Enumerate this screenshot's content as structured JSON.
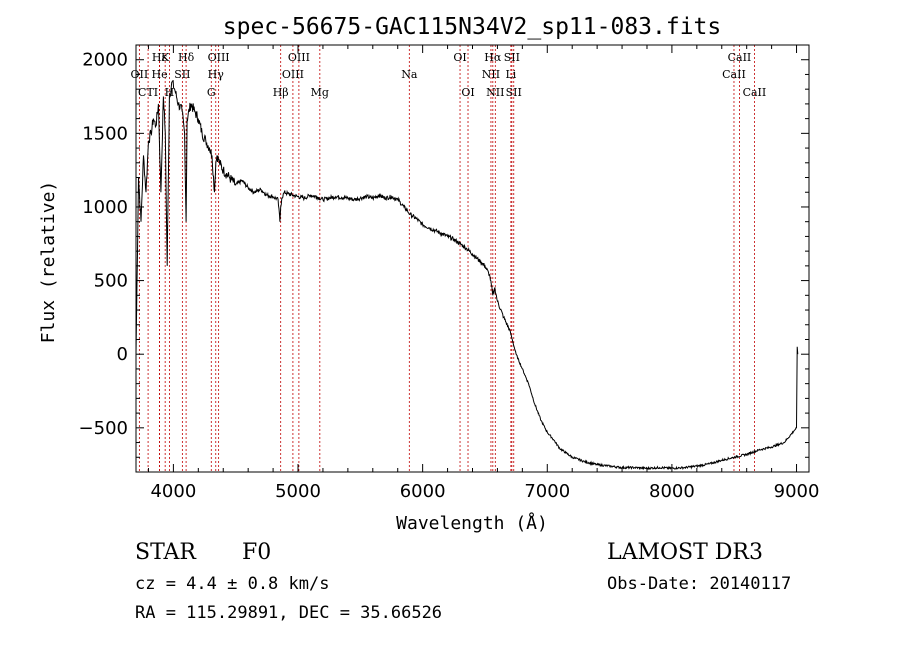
{
  "chart_data": {
    "type": "line",
    "title": "spec-56675-GAC115N34V2_sp11-083.fits",
    "xlabel": "Wavelength (Å)",
    "ylabel": "Flux (relative)",
    "xlim": [
      3700,
      9100
    ],
    "ylim": [
      -800,
      2100
    ],
    "x_ticks": [
      4000,
      5000,
      6000,
      7000,
      8000,
      9000
    ],
    "y_ticks": [
      -500,
      0,
      500,
      1000,
      1500,
      2000
    ],
    "x_tick_labels": [
      "4000",
      "5000",
      "6000",
      "7000",
      "8000",
      "9000"
    ],
    "y_tick_labels": [
      "−500",
      "0",
      "500",
      "1000",
      "1500",
      "2000"
    ],
    "series": [
      {
        "name": "flux",
        "x": [
          3700,
          3720,
          3740,
          3760,
          3780,
          3800,
          3820,
          3840,
          3860,
          3880,
          3900,
          3920,
          3935,
          3950,
          3968,
          3990,
          4010,
          4040,
          4070,
          4090,
          4102,
          4110,
          4140,
          4170,
          4200,
          4230,
          4260,
          4290,
          4310,
          4330,
          4340,
          4350,
          4370,
          4400,
          4450,
          4500,
          4550,
          4600,
          4650,
          4700,
          4750,
          4800,
          4840,
          4855,
          4861,
          4870,
          4890,
          4920,
          4960,
          5000,
          5050,
          5100,
          5150,
          5200,
          5250,
          5300,
          5350,
          5400,
          5450,
          5500,
          5550,
          5600,
          5650,
          5700,
          5750,
          5800,
          5850,
          5880,
          5900,
          5950,
          6000,
          6050,
          6100,
          6150,
          6200,
          6250,
          6300,
          6350,
          6400,
          6450,
          6500,
          6540,
          6563,
          6580,
          6600,
          6650,
          6700,
          6750,
          6800,
          6850,
          6900,
          6950,
          7000,
          7050,
          7100,
          7150,
          7200,
          7300,
          7400,
          7500,
          7600,
          7700,
          7800,
          7900,
          8000,
          8100,
          8200,
          8300,
          8400,
          8500,
          8600,
          8700,
          8800,
          8900,
          8980,
          9000,
          9005,
          9010
        ],
        "y": [
          0,
          1200,
          900,
          1350,
          1100,
          1450,
          1500,
          1600,
          1550,
          1700,
          1100,
          1750,
          1500,
          600,
          1750,
          1850,
          1800,
          1700,
          1650,
          1500,
          900,
          1600,
          1700,
          1650,
          1600,
          1500,
          1450,
          1400,
          1350,
          1100,
          1300,
          1350,
          1300,
          1250,
          1200,
          1150,
          1180,
          1130,
          1100,
          1120,
          1080,
          1070,
          1050,
          900,
          1000,
          1060,
          1100,
          1090,
          1080,
          1070,
          1060,
          1080,
          1070,
          1050,
          1060,
          1070,
          1065,
          1060,
          1050,
          1060,
          1070,
          1060,
          1080,
          1060,
          1070,
          1050,
          1000,
          970,
          950,
          920,
          880,
          860,
          840,
          820,
          800,
          780,
          750,
          720,
          680,
          640,
          600,
          530,
          400,
          450,
          360,
          250,
          160,
          0,
          -100,
          -200,
          -340,
          -450,
          -530,
          -580,
          -640,
          -670,
          -700,
          -730,
          -750,
          -760,
          -770,
          -770,
          -775,
          -770,
          -775,
          -770,
          -760,
          -745,
          -720,
          -700,
          -680,
          -650,
          -630,
          -600,
          -520,
          -500,
          50,
          0
        ]
      }
    ],
    "lines": [
      {
        "label": "Hε",
        "x": 3889,
        "row": 1
      },
      {
        "label": "OII",
        "x": 3727,
        "row": 2
      },
      {
        "label": "CTI",
        "x": 3797,
        "row": 3
      },
      {
        "label": "K",
        "x": 3934,
        "row": 1
      },
      {
        "label": "He",
        "x": 3889,
        "row": 2
      },
      {
        "label": "H",
        "x": 3968,
        "row": 3
      },
      {
        "label": "Hδ",
        "x": 4102,
        "row": 1
      },
      {
        "label": "SII",
        "x": 4072,
        "row": 2
      },
      {
        "label": "OIII",
        "x": 4363,
        "row": 1
      },
      {
        "label": "Hγ",
        "x": 4340,
        "row": 2
      },
      {
        "label": "G",
        "x": 4304,
        "row": 3
      },
      {
        "label": "Hβ",
        "x": 4861,
        "row": 3
      },
      {
        "label": "OIII",
        "x": 5007,
        "row": 1
      },
      {
        "label": "OIII",
        "x": 4959,
        "row": 2
      },
      {
        "label": "Mg",
        "x": 5175,
        "row": 3
      },
      {
        "label": "Na",
        "x": 5893,
        "row": 2
      },
      {
        "label": "OI",
        "x": 6300,
        "row": 1
      },
      {
        "label": "OI",
        "x": 6364,
        "row": 3
      },
      {
        "label": "Hα",
        "x": 6563,
        "row": 1
      },
      {
        "label": "SII",
        "x": 6716,
        "row": 1
      },
      {
        "label": "NII",
        "x": 6548,
        "row": 2
      },
      {
        "label": "Li",
        "x": 6708,
        "row": 2
      },
      {
        "label": "NII",
        "x": 6583,
        "row": 3
      },
      {
        "label": "SII",
        "x": 6731,
        "row": 3
      },
      {
        "label": "CaII",
        "x": 8542,
        "row": 1
      },
      {
        "label": "CaII",
        "x": 8498,
        "row": 2
      },
      {
        "label": "CaII",
        "x": 8662,
        "row": 3
      }
    ]
  },
  "info": {
    "class": "STAR",
    "subclass": "F0",
    "cz": "cz = 4.4 ± 0.8 km/s",
    "radec": "RA = 115.29891, DEC =  35.66526",
    "survey": "LAMOST DR3",
    "obsdate": "Obs-Date: 20140117"
  }
}
